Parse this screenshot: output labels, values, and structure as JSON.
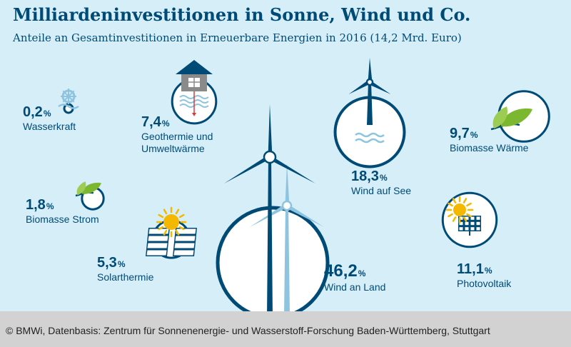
{
  "title": "Milliardeninvestitionen in Sonne, Wind und Co.",
  "subtitle": "Anteile an Gesamtinvestitionen in Erneuerbare Energien in 2016 (14,2 Mrd. Euro)",
  "footer": "© BMWi, Datenbasis: Zentrum für Sonnenenergie- und Wasserstoff-Forschung Baden-Württemberg, Stuttgart",
  "colors": {
    "background": "#d6eef8",
    "dark_blue": "#004b76",
    "light_blue": "#8fc4e0",
    "green": "#7cb82f",
    "sun": "#f5b800",
    "footer_bg": "#d2d2d2"
  },
  "chart_data": {
    "type": "bubble",
    "unit": "%",
    "items": [
      {
        "label": "Wasserkraft",
        "value": 0.2,
        "value_text": "0,2",
        "icon": "water-wheel-icon"
      },
      {
        "label": "Geothermie und Umweltwärme",
        "value": 7.4,
        "value_text": "7,4",
        "icon": "geothermal-house-icon"
      },
      {
        "label": "Wind auf See",
        "value": 18.3,
        "value_text": "18,3",
        "icon": "offshore-wind-turbine-icon"
      },
      {
        "label": "Biomasse Wärme",
        "value": 9.7,
        "value_text": "9,7",
        "icon": "leaves-icon"
      },
      {
        "label": "Biomasse Strom",
        "value": 1.8,
        "value_text": "1,8",
        "icon": "leaves-icon"
      },
      {
        "label": "Solarthermie",
        "value": 5.3,
        "value_text": "5,3",
        "icon": "solar-collector-icon"
      },
      {
        "label": "Wind an Land",
        "value": 46.2,
        "value_text": "46,2",
        "icon": "wind-turbines-icon"
      },
      {
        "label": "Photovoltaik",
        "value": 11.1,
        "value_text": "11,1",
        "icon": "solar-panel-icon"
      }
    ]
  }
}
